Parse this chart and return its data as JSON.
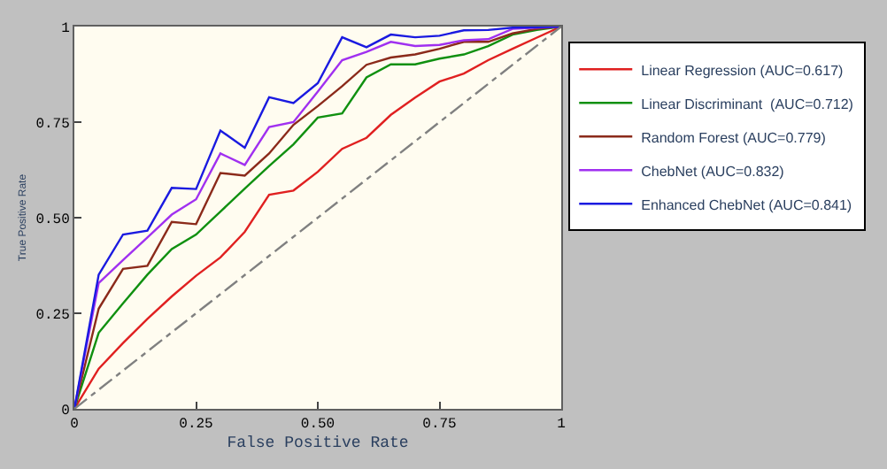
{
  "chart_data": {
    "type": "line",
    "xlabel": "False Positive Rate",
    "ylabel": "True Positive Rate",
    "x": [
      0,
      0.05,
      0.1,
      0.15,
      0.2,
      0.25,
      0.3,
      0.35,
      0.4,
      0.45,
      0.5,
      0.55,
      0.6,
      0.65,
      0.7,
      0.75,
      0.8,
      0.85,
      0.9,
      0.95,
      1
    ],
    "series": [
      {
        "name": "Linear Regression (AUC=0.617)",
        "color": "#e02020",
        "values": [
          0,
          0.105,
          0.172,
          0.235,
          0.294,
          0.348,
          0.396,
          0.463,
          0.56,
          0.571,
          0.62,
          0.68,
          0.709,
          0.769,
          0.814,
          0.856,
          0.877,
          0.912,
          0.942,
          0.971,
          1
        ]
      },
      {
        "name": "Linear Discriminant  (AUC=0.712)",
        "color": "#109010",
        "values": [
          0,
          0.199,
          0.276,
          0.351,
          0.418,
          0.456,
          0.516,
          0.576,
          0.635,
          0.692,
          0.762,
          0.773,
          0.867,
          0.901,
          0.901,
          0.916,
          0.927,
          0.949,
          0.979,
          0.991,
          1
        ]
      },
      {
        "name": "Random Forest (AUC=0.779)",
        "color": "#8b2a1a",
        "values": [
          0,
          0.262,
          0.366,
          0.374,
          0.489,
          0.483,
          0.617,
          0.61,
          0.668,
          0.743,
          0.792,
          0.844,
          0.9,
          0.919,
          0.927,
          0.942,
          0.96,
          0.96,
          0.982,
          0.994,
          1
        ]
      },
      {
        "name": "ChebNet (AUC=0.832)",
        "color": "#a030f0",
        "values": [
          0,
          0.329,
          0.389,
          0.448,
          0.508,
          0.548,
          0.668,
          0.638,
          0.737,
          0.75,
          0.83,
          0.912,
          0.934,
          0.96,
          0.949,
          0.952,
          0.964,
          0.967,
          0.994,
          0.997,
          1
        ]
      },
      {
        "name": "Enhanced ChebNet (AUC=0.841)",
        "color": "#1a1ae0",
        "values": [
          0,
          0.351,
          0.456,
          0.466,
          0.578,
          0.575,
          0.728,
          0.683,
          0.815,
          0.8,
          0.852,
          0.972,
          0.946,
          0.979,
          0.972,
          0.976,
          0.99,
          0.991,
          0.997,
          0.998,
          1
        ]
      },
      {
        "color": "#808080",
        "line_style": "dashed",
        "x": [
          0,
          1
        ],
        "values": [
          0,
          1
        ]
      }
    ],
    "xlim": [
      0,
      1
    ],
    "ylim": [
      0,
      1
    ],
    "xticks": [
      0,
      {
        "value": 0.25,
        "label": "0.25"
      },
      {
        "value": 0.5,
        "label": "0.50"
      },
      {
        "value": 0.75,
        "label": "0.75"
      },
      1
    ],
    "yticks": [
      0,
      {
        "value": 0.25,
        "label": "0.25"
      },
      {
        "value": 0.5,
        "label": "0.50"
      },
      {
        "value": 0.75,
        "label": "0.75"
      },
      1
    ],
    "grid": false,
    "legend": "top right",
    "marker": "none",
    "line_style": "solid"
  }
}
